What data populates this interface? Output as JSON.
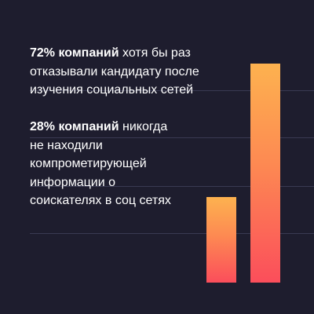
{
  "colors": {
    "background": "#1e1d2e",
    "gridline": "#3a3a52",
    "bar_gradient_top": "#fdb24f",
    "bar_gradient_bottom": "#fb4e5b",
    "text": "#ffffff"
  },
  "stat1": {
    "bold": "72% компаний",
    "line1_rest": " хотя бы раз",
    "line2": "отказывали кандидату после",
    "line3": "изучения социальных сетей"
  },
  "stat2": {
    "bold": "28% компаний",
    "line1_rest": " никогда",
    "line2": "не находили",
    "line3": "компрометирующей",
    "line4": "информации о",
    "line5": "соискателях в соц сетях"
  },
  "chart_data": {
    "type": "bar",
    "categories": [
      "",
      ""
    ],
    "values": [
      28,
      72
    ],
    "title": "",
    "xlabel": "",
    "ylabel": "",
    "ylim": [
      0,
      100
    ],
    "grid": true
  }
}
